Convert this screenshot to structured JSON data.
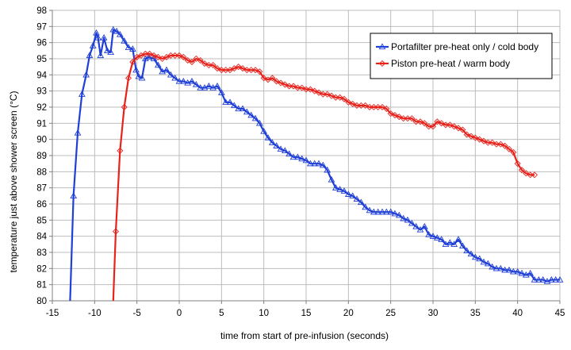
{
  "chart_data": {
    "type": "line",
    "xlabel": "time from start of pre-infusion (seconds)",
    "ylabel": "temperature just above shower screen (°C)",
    "xlim": [
      -15,
      45
    ],
    "ylim": [
      80,
      98
    ],
    "x_ticks": [
      "-15",
      "-10",
      "-5",
      "0",
      "5",
      "10",
      "15",
      "20",
      "25",
      "30",
      "35",
      "40",
      "45"
    ],
    "y_ticks": [
      "80",
      "81",
      "82",
      "83",
      "84",
      "85",
      "86",
      "87",
      "88",
      "89",
      "90",
      "91",
      "92",
      "93",
      "94",
      "95",
      "96",
      "97",
      "98"
    ],
    "grid": true,
    "legend_position": "top-right",
    "series": [
      {
        "name": "Portafilter pre-heat only / cold body",
        "color": "#1f3fd6",
        "marker": "triangle",
        "points": [
          [
            -12.9,
            80.0
          ],
          [
            -12.5,
            86.5
          ],
          [
            -12.0,
            90.4
          ],
          [
            -11.5,
            92.8
          ],
          [
            -11.0,
            94.0
          ],
          [
            -10.6,
            95.2
          ],
          [
            -10.2,
            95.8
          ],
          [
            -9.8,
            96.6
          ],
          [
            -9.6,
            96.3
          ],
          [
            -9.3,
            95.2
          ],
          [
            -8.9,
            96.3
          ],
          [
            -8.5,
            95.5
          ],
          [
            -8.1,
            95.4
          ],
          [
            -7.8,
            96.8
          ],
          [
            -7.4,
            96.7
          ],
          [
            -7.0,
            96.5
          ],
          [
            -6.5,
            96.1
          ],
          [
            -6.0,
            95.7
          ],
          [
            -5.5,
            95.6
          ],
          [
            -5.1,
            94.3
          ],
          [
            -4.8,
            93.9
          ],
          [
            -4.4,
            93.8
          ],
          [
            -4.0,
            95.0
          ],
          [
            -3.6,
            95.1
          ],
          [
            -3.0,
            95.0
          ],
          [
            -2.5,
            94.6
          ],
          [
            -2.0,
            94.2
          ],
          [
            -1.5,
            94.3
          ],
          [
            -1.0,
            94.0
          ],
          [
            -0.5,
            93.8
          ],
          [
            0.0,
            93.6
          ],
          [
            0.5,
            93.6
          ],
          [
            1.0,
            93.5
          ],
          [
            1.5,
            93.6
          ],
          [
            2.0,
            93.4
          ],
          [
            2.5,
            93.2
          ],
          [
            3.0,
            93.2
          ],
          [
            3.5,
            93.3
          ],
          [
            4.0,
            93.2
          ],
          [
            4.5,
            93.3
          ],
          [
            5.0,
            92.9
          ],
          [
            5.5,
            92.3
          ],
          [
            6.0,
            92.3
          ],
          [
            6.5,
            92.1
          ],
          [
            7.0,
            91.9
          ],
          [
            7.5,
            91.9
          ],
          [
            8.0,
            91.7
          ],
          [
            8.5,
            91.5
          ],
          [
            9.0,
            91.3
          ],
          [
            9.5,
            91.0
          ],
          [
            10.0,
            90.5
          ],
          [
            10.5,
            90.1
          ],
          [
            11.0,
            89.8
          ],
          [
            11.5,
            89.6
          ],
          [
            12.0,
            89.4
          ],
          [
            12.5,
            89.3
          ],
          [
            13.0,
            89.1
          ],
          [
            13.5,
            88.9
          ],
          [
            14.0,
            88.9
          ],
          [
            14.5,
            88.8
          ],
          [
            15.0,
            88.7
          ],
          [
            15.5,
            88.5
          ],
          [
            16.0,
            88.5
          ],
          [
            16.5,
            88.5
          ],
          [
            17.0,
            88.4
          ],
          [
            17.5,
            88.1
          ],
          [
            18.0,
            87.5
          ],
          [
            18.5,
            87.0
          ],
          [
            19.0,
            86.9
          ],
          [
            19.5,
            86.8
          ],
          [
            20.0,
            86.6
          ],
          [
            20.5,
            86.5
          ],
          [
            21.0,
            86.3
          ],
          [
            21.5,
            86.1
          ],
          [
            22.0,
            85.8
          ],
          [
            22.5,
            85.6
          ],
          [
            23.0,
            85.5
          ],
          [
            23.5,
            85.5
          ],
          [
            24.0,
            85.5
          ],
          [
            24.5,
            85.5
          ],
          [
            25.0,
            85.5
          ],
          [
            25.5,
            85.4
          ],
          [
            26.0,
            85.3
          ],
          [
            26.5,
            85.1
          ],
          [
            27.0,
            85.0
          ],
          [
            27.5,
            84.8
          ],
          [
            28.0,
            84.6
          ],
          [
            28.5,
            84.4
          ],
          [
            29.0,
            84.6
          ],
          [
            29.5,
            84.1
          ],
          [
            30.0,
            84.0
          ],
          [
            30.5,
            83.9
          ],
          [
            31.0,
            83.8
          ],
          [
            31.5,
            83.5
          ],
          [
            32.0,
            83.6
          ],
          [
            32.5,
            83.5
          ],
          [
            33.0,
            83.8
          ],
          [
            33.5,
            83.4
          ],
          [
            34.0,
            83.1
          ],
          [
            34.5,
            82.9
          ],
          [
            35.0,
            82.7
          ],
          [
            35.5,
            82.6
          ],
          [
            36.0,
            82.4
          ],
          [
            36.5,
            82.3
          ],
          [
            37.0,
            82.1
          ],
          [
            37.5,
            82.0
          ],
          [
            38.0,
            82.0
          ],
          [
            38.5,
            81.9
          ],
          [
            39.0,
            81.9
          ],
          [
            39.5,
            81.8
          ],
          [
            40.0,
            81.8
          ],
          [
            40.5,
            81.7
          ],
          [
            41.0,
            81.6
          ],
          [
            41.5,
            81.7
          ],
          [
            42.0,
            81.3
          ],
          [
            42.5,
            81.3
          ],
          [
            43.0,
            81.3
          ],
          [
            43.5,
            81.2
          ],
          [
            44.0,
            81.3
          ],
          [
            44.5,
            81.3
          ],
          [
            45.0,
            81.3
          ]
        ]
      },
      {
        "name": "Piston pre-heat / warm body",
        "color": "#e8221b",
        "marker": "diamond",
        "points": [
          [
            -7.8,
            80.0
          ],
          [
            -7.5,
            84.3
          ],
          [
            -7.0,
            89.3
          ],
          [
            -6.5,
            92.0
          ],
          [
            -6.0,
            93.8
          ],
          [
            -5.5,
            94.8
          ],
          [
            -5.0,
            95.1
          ],
          [
            -4.5,
            95.2
          ],
          [
            -4.0,
            95.3
          ],
          [
            -3.5,
            95.3
          ],
          [
            -3.0,
            95.2
          ],
          [
            -2.5,
            95.1
          ],
          [
            -2.0,
            95.0
          ],
          [
            -1.5,
            95.1
          ],
          [
            -1.0,
            95.2
          ],
          [
            -0.5,
            95.2
          ],
          [
            0.0,
            95.2
          ],
          [
            0.5,
            95.1
          ],
          [
            1.0,
            94.9
          ],
          [
            1.5,
            94.8
          ],
          [
            2.0,
            95.0
          ],
          [
            2.5,
            94.9
          ],
          [
            3.0,
            94.7
          ],
          [
            3.5,
            94.6
          ],
          [
            4.0,
            94.6
          ],
          [
            4.5,
            94.4
          ],
          [
            5.0,
            94.3
          ],
          [
            5.5,
            94.3
          ],
          [
            6.0,
            94.3
          ],
          [
            6.5,
            94.4
          ],
          [
            7.0,
            94.5
          ],
          [
            7.5,
            94.4
          ],
          [
            8.0,
            94.3
          ],
          [
            8.5,
            94.3
          ],
          [
            9.0,
            94.3
          ],
          [
            9.5,
            94.2
          ],
          [
            10.0,
            93.8
          ],
          [
            10.5,
            93.7
          ],
          [
            11.0,
            93.8
          ],
          [
            11.5,
            93.6
          ],
          [
            12.0,
            93.5
          ],
          [
            12.5,
            93.4
          ],
          [
            13.0,
            93.3
          ],
          [
            13.5,
            93.3
          ],
          [
            14.0,
            93.2
          ],
          [
            14.5,
            93.2
          ],
          [
            15.0,
            93.1
          ],
          [
            15.5,
            93.1
          ],
          [
            16.0,
            93.0
          ],
          [
            16.5,
            92.9
          ],
          [
            17.0,
            92.8
          ],
          [
            17.5,
            92.8
          ],
          [
            18.0,
            92.7
          ],
          [
            18.5,
            92.6
          ],
          [
            19.0,
            92.6
          ],
          [
            19.5,
            92.5
          ],
          [
            20.0,
            92.3
          ],
          [
            20.5,
            92.2
          ],
          [
            21.0,
            92.1
          ],
          [
            21.5,
            92.1
          ],
          [
            22.0,
            92.1
          ],
          [
            22.5,
            92.0
          ],
          [
            23.0,
            92.0
          ],
          [
            23.5,
            92.0
          ],
          [
            24.0,
            92.0
          ],
          [
            24.5,
            91.9
          ],
          [
            25.0,
            91.6
          ],
          [
            25.5,
            91.5
          ],
          [
            26.0,
            91.4
          ],
          [
            26.5,
            91.3
          ],
          [
            27.0,
            91.3
          ],
          [
            27.5,
            91.3
          ],
          [
            28.0,
            91.1
          ],
          [
            28.5,
            91.1
          ],
          [
            29.0,
            91.0
          ],
          [
            29.5,
            90.8
          ],
          [
            30.0,
            90.8
          ],
          [
            30.5,
            91.1
          ],
          [
            31.0,
            91.0
          ],
          [
            31.5,
            90.9
          ],
          [
            32.0,
            90.9
          ],
          [
            32.5,
            90.8
          ],
          [
            33.0,
            90.7
          ],
          [
            33.5,
            90.6
          ],
          [
            34.0,
            90.3
          ],
          [
            34.5,
            90.2
          ],
          [
            35.0,
            90.1
          ],
          [
            35.5,
            90.0
          ],
          [
            36.0,
            89.9
          ],
          [
            36.5,
            89.8
          ],
          [
            37.0,
            89.8
          ],
          [
            37.5,
            89.7
          ],
          [
            38.0,
            89.7
          ],
          [
            38.5,
            89.6
          ],
          [
            39.0,
            89.4
          ],
          [
            39.5,
            89.2
          ],
          [
            40.0,
            88.5
          ],
          [
            40.5,
            88.1
          ],
          [
            41.0,
            87.9
          ],
          [
            41.5,
            87.8
          ],
          [
            42.0,
            87.8
          ]
        ]
      }
    ]
  }
}
